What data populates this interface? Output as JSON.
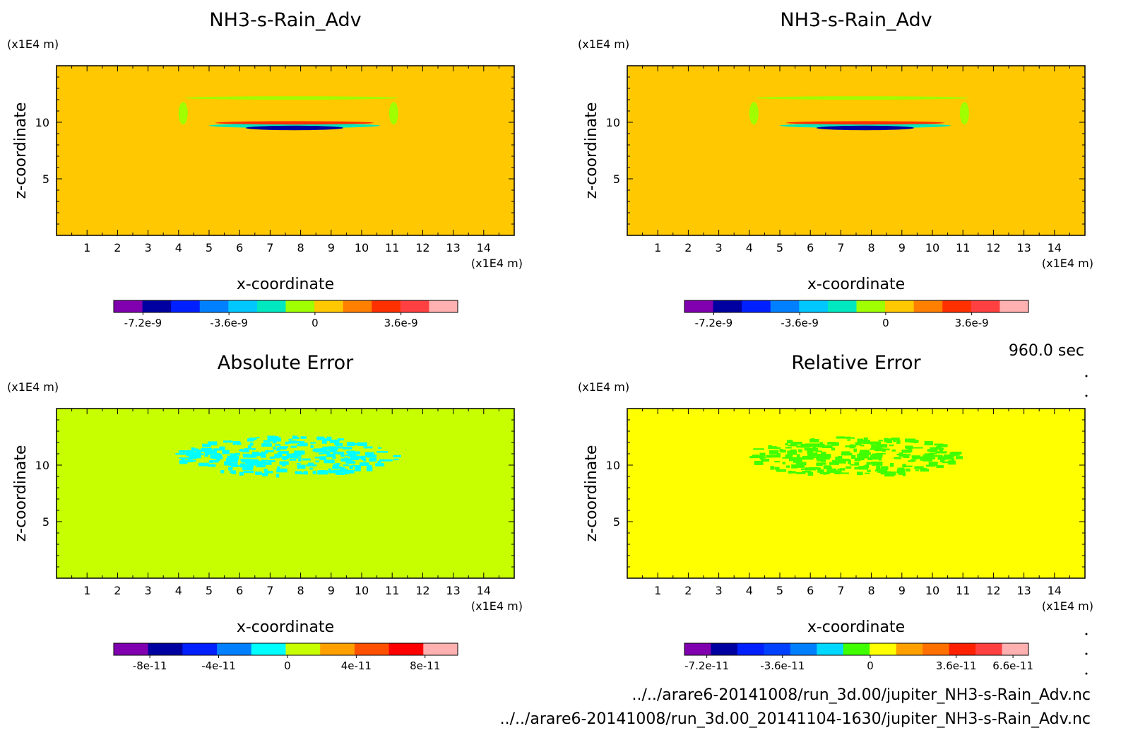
{
  "time_label": "960.0 sec",
  "files": [
    "../../arare6-20141008/run_3d.00/jupiter_NH3-s-Rain_Adv.nc",
    "../../arare6-20141008/run_3d.00_20141104-1630/jupiter_NH3-s-Rain_Adv.nc"
  ],
  "chart_data": [
    {
      "type": "heatmap",
      "title": "NH3-s-Rain_Adv",
      "xlabel": "x-coordinate",
      "ylabel": "z-coordinate",
      "x_unit": "(x1E4 m)",
      "y_unit": "(x1E4 m)",
      "xlim": [
        0,
        15
      ],
      "ylim": [
        0,
        15
      ],
      "x_ticks": [
        "1",
        "2",
        "3",
        "4",
        "5",
        "6",
        "7",
        "8",
        "9",
        "10",
        "11",
        "12",
        "13",
        "14"
      ],
      "y_ticks": [
        "5",
        "10"
      ],
      "background": "#ffc800",
      "colorbar": {
        "colors": [
          "#8000b0",
          "#0000a0",
          "#0020ff",
          "#0080ff",
          "#00c8ff",
          "#00e8c0",
          "#a0ff00",
          "#ffc800",
          "#ff8000",
          "#ff3000",
          "#ff4040",
          "#ffb0b0"
        ],
        "tick_labels": [
          "-7.2e-9",
          "-3.6e-9",
          "0",
          "3.6e-9"
        ]
      },
      "features": [
        {
          "kind": "band",
          "x": [
            5.0,
            10.6
          ],
          "z": [
            9.5,
            9.9
          ],
          "color": "#00e8c0"
        },
        {
          "kind": "band",
          "x": [
            6.2,
            9.4
          ],
          "z": [
            9.3,
            9.7
          ],
          "color": "#0000a0"
        },
        {
          "kind": "band",
          "x": [
            5.2,
            10.4
          ],
          "z": [
            9.8,
            10.1
          ],
          "color": "#ff3000"
        },
        {
          "kind": "band",
          "x": [
            4.2,
            11.2
          ],
          "z": [
            12.0,
            12.3
          ],
          "color": "#a0ff00"
        },
        {
          "kind": "band",
          "x": [
            4.0,
            4.3
          ],
          "z": [
            9.8,
            11.8
          ],
          "color": "#a0ff00"
        },
        {
          "kind": "band",
          "x": [
            10.9,
            11.2
          ],
          "z": [
            9.8,
            11.8
          ],
          "color": "#a0ff00"
        }
      ]
    },
    {
      "type": "heatmap",
      "title": "NH3-s-Rain_Adv",
      "xlabel": "x-coordinate",
      "ylabel": "z-coordinate",
      "x_unit": "(x1E4 m)",
      "y_unit": "(x1E4 m)",
      "xlim": [
        0,
        15
      ],
      "ylim": [
        0,
        15
      ],
      "x_ticks": [
        "1",
        "2",
        "3",
        "4",
        "5",
        "6",
        "7",
        "8",
        "9",
        "10",
        "11",
        "12",
        "13",
        "14"
      ],
      "y_ticks": [
        "5",
        "10"
      ],
      "background": "#ffc800",
      "colorbar": {
        "colors": [
          "#8000b0",
          "#0000a0",
          "#0020ff",
          "#0080ff",
          "#00c8ff",
          "#00e8c0",
          "#a0ff00",
          "#ffc800",
          "#ff8000",
          "#ff3000",
          "#ff4040",
          "#ffb0b0"
        ],
        "tick_labels": [
          "-7.2e-9",
          "-3.6e-9",
          "0",
          "3.6e-9"
        ]
      },
      "features": [
        {
          "kind": "band",
          "x": [
            5.0,
            10.6
          ],
          "z": [
            9.5,
            9.9
          ],
          "color": "#00e8c0"
        },
        {
          "kind": "band",
          "x": [
            6.2,
            9.4
          ],
          "z": [
            9.3,
            9.7
          ],
          "color": "#0000a0"
        },
        {
          "kind": "band",
          "x": [
            5.2,
            10.4
          ],
          "z": [
            9.8,
            10.1
          ],
          "color": "#ff3000"
        },
        {
          "kind": "band",
          "x": [
            4.2,
            11.2
          ],
          "z": [
            12.0,
            12.3
          ],
          "color": "#a0ff00"
        },
        {
          "kind": "band",
          "x": [
            4.0,
            4.3
          ],
          "z": [
            9.8,
            11.8
          ],
          "color": "#a0ff00"
        },
        {
          "kind": "band",
          "x": [
            10.9,
            11.2
          ],
          "z": [
            9.8,
            11.8
          ],
          "color": "#a0ff00"
        }
      ]
    },
    {
      "type": "heatmap",
      "title": "Absolute Error",
      "xlabel": "x-coordinate",
      "ylabel": "z-coordinate",
      "x_unit": "(x1E4 m)",
      "y_unit": "(x1E4 m)",
      "xlim": [
        0,
        15
      ],
      "ylim": [
        0,
        15
      ],
      "x_ticks": [
        "1",
        "2",
        "3",
        "4",
        "5",
        "6",
        "7",
        "8",
        "9",
        "10",
        "11",
        "12",
        "13",
        "14"
      ],
      "y_ticks": [
        "5",
        "10"
      ],
      "background": "#c8ff00",
      "colorbar": {
        "colors": [
          "#8000b0",
          "#0000a0",
          "#0020ff",
          "#0080ff",
          "#00ffff",
          "#c8ff00",
          "#ffa000",
          "#ff5000",
          "#ff0000",
          "#ffb0b0"
        ],
        "tick_labels": [
          "-8e-11",
          "-4e-11",
          "0",
          "4e-11",
          "8e-11"
        ]
      },
      "features": [
        {
          "kind": "speckle",
          "x": [
            4.0,
            11.2
          ],
          "z": [
            9.0,
            12.5
          ],
          "color": "#00ffff"
        }
      ]
    },
    {
      "type": "heatmap",
      "title": "Relative Error",
      "xlabel": "x-coordinate",
      "ylabel": "z-coordinate",
      "x_unit": "(x1E4 m)",
      "y_unit": "(x1E4 m)",
      "xlim": [
        0,
        15
      ],
      "ylim": [
        0,
        15
      ],
      "x_ticks": [
        "1",
        "2",
        "3",
        "4",
        "5",
        "6",
        "7",
        "8",
        "9",
        "10",
        "11",
        "12",
        "13",
        "14"
      ],
      "y_ticks": [
        "5",
        "10"
      ],
      "background": "#ffff00",
      "colorbar": {
        "colors": [
          "#8000b0",
          "#0000a0",
          "#0020ff",
          "#0040ff",
          "#0080ff",
          "#00d8ff",
          "#40ff00",
          "#ffff00",
          "#ffa000",
          "#ff7000",
          "#ff2000",
          "#ff4040",
          "#ffb0b0"
        ],
        "tick_labels": [
          "-7.2e-11",
          "-3.6e-11",
          "0",
          "3.6e-11",
          "6.6e-11"
        ]
      },
      "features": [
        {
          "kind": "speckle",
          "x": [
            4.0,
            11.0
          ],
          "z": [
            9.0,
            12.5
          ],
          "color": "#40ff00"
        }
      ]
    }
  ]
}
